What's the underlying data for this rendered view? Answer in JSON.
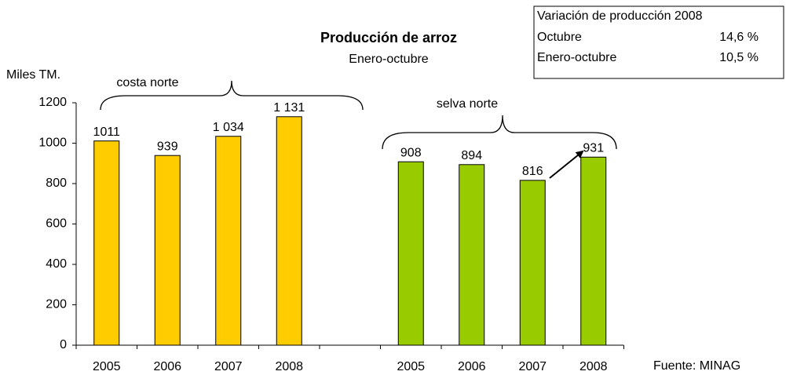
{
  "chart_data": {
    "type": "bar",
    "title": "Producción de arroz",
    "subtitle": "Enero-octubre",
    "y_label": "Miles TM.",
    "source": "Fuente: MINAG",
    "categories": [
      "2005",
      "2006",
      "2007",
      "2008",
      null,
      "2005",
      "2006",
      "2007",
      "2008"
    ],
    "series": [
      {
        "name": "costa norte",
        "color": "#ffcc00",
        "values": [
          1011,
          939,
          1034,
          1131,
          null,
          null,
          null,
          null,
          null
        ],
        "value_labels": [
          "1011",
          "939",
          "1 034",
          "1 131",
          null,
          null,
          null,
          null,
          null
        ]
      },
      {
        "name": "selva norte",
        "color": "#99cc00",
        "values": [
          null,
          null,
          null,
          null,
          null,
          908,
          894,
          816,
          931
        ],
        "value_labels": [
          null,
          null,
          null,
          null,
          null,
          "908",
          "894",
          "816",
          "931"
        ]
      }
    ],
    "ylim": [
      0,
      1200
    ],
    "yticks": [
      0,
      200,
      400,
      600,
      800,
      1000,
      1200
    ],
    "grid": false,
    "info_box": {
      "title": "Variación de producción 2008",
      "rows": [
        [
          "Octubre",
          "14,6 %"
        ],
        [
          "Enero-octubre",
          "10,5 %"
        ]
      ]
    }
  }
}
